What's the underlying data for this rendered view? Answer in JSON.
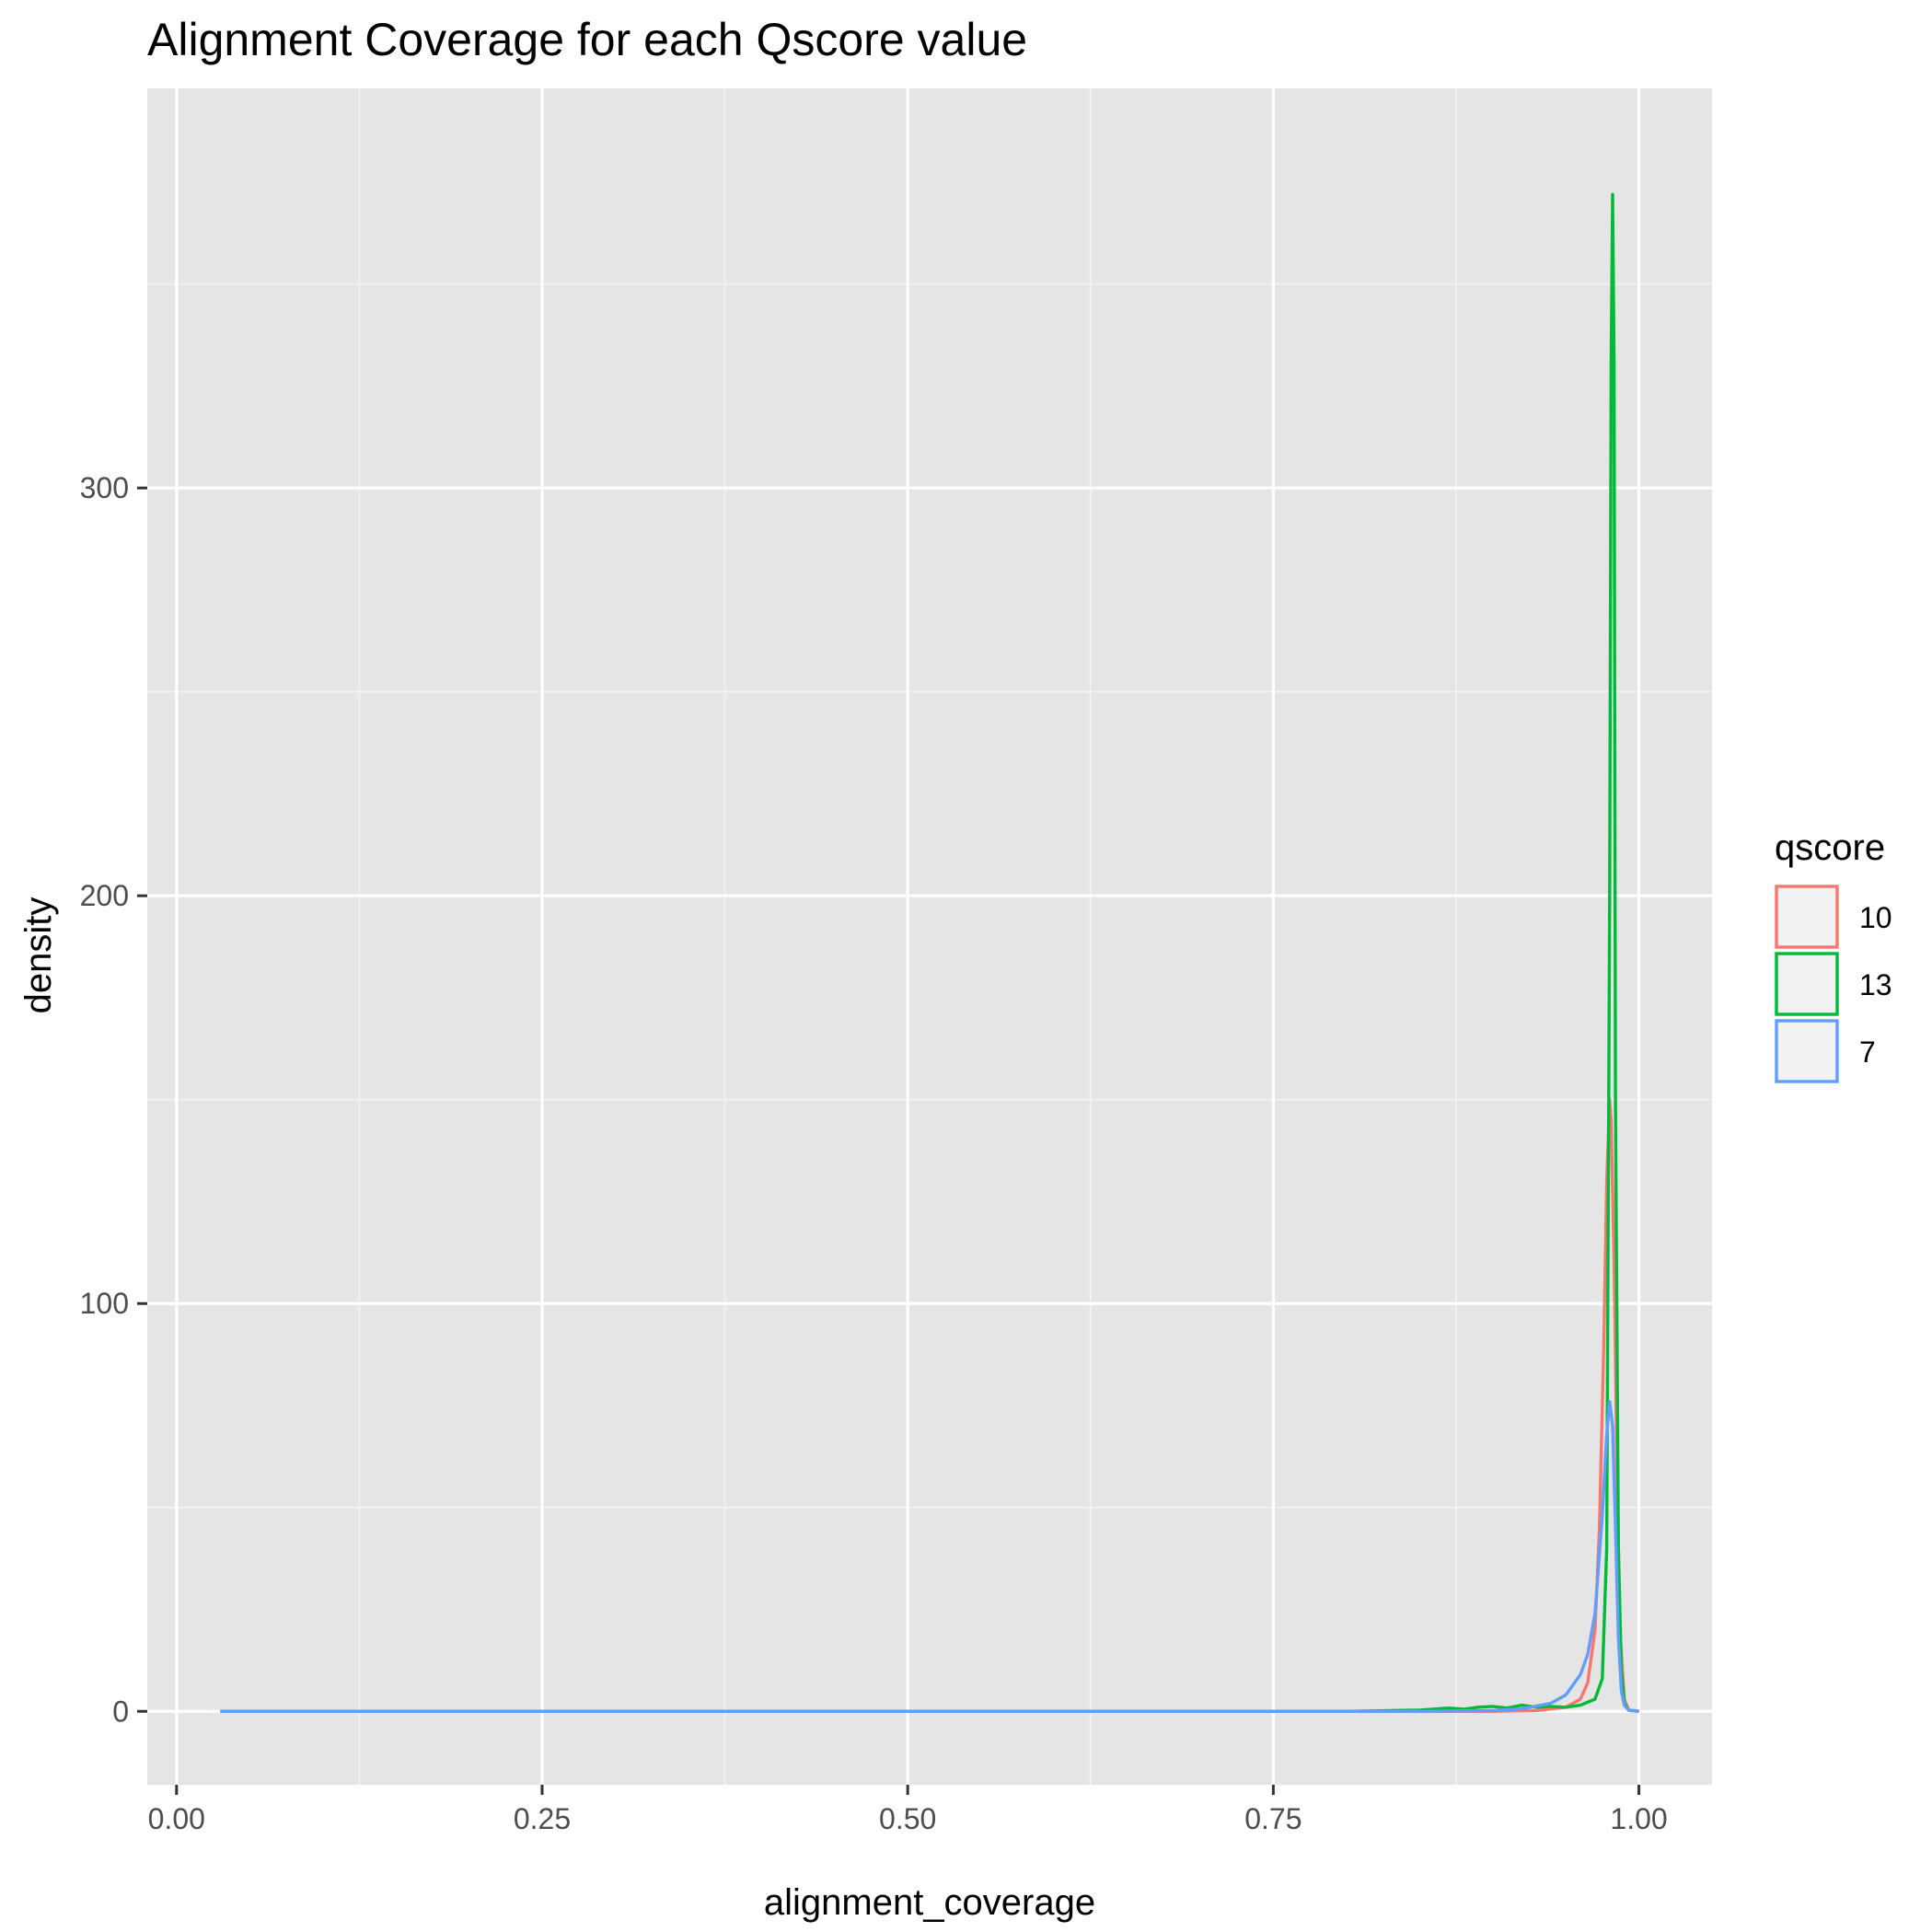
{
  "chart_data": {
    "type": "line",
    "title": "Alignment Coverage for each Qscore value",
    "xlabel": "alignment_coverage",
    "ylabel": "density",
    "xlim": [
      -0.02,
      1.05
    ],
    "ylim": [
      -18,
      398
    ],
    "x_ticks": [
      0.0,
      0.25,
      0.5,
      0.75,
      1.0
    ],
    "x_tick_labels": [
      "0.00",
      "0.25",
      "0.50",
      "0.75",
      "1.00"
    ],
    "y_ticks": [
      0,
      100,
      200,
      300
    ],
    "y_tick_labels": [
      "0",
      "100",
      "200",
      "300"
    ],
    "grid": true,
    "background": "#e5e5e5",
    "legend": {
      "title": "qscore",
      "position": "right",
      "entries": [
        "10",
        "13",
        "7"
      ]
    },
    "series": [
      {
        "name": "10",
        "color": "#f8766d",
        "x": [
          0.03,
          0.2,
          0.4,
          0.6,
          0.8,
          0.85,
          0.9,
          0.93,
          0.95,
          0.96,
          0.965,
          0.97,
          0.973,
          0.976,
          0.978,
          0.98,
          0.981,
          0.983,
          0.985,
          0.987,
          0.99,
          0.993,
          1.0
        ],
        "y": [
          0,
          0,
          0,
          0,
          0,
          0,
          0,
          0.2,
          1,
          3,
          7,
          20,
          45,
          90,
          130,
          150,
          145,
          110,
          60,
          20,
          3,
          0.3,
          0
        ]
      },
      {
        "name": "13",
        "color": "#00ba38",
        "x": [
          0.03,
          0.2,
          0.4,
          0.6,
          0.8,
          0.85,
          0.87,
          0.88,
          0.89,
          0.9,
          0.91,
          0.92,
          0.93,
          0.94,
          0.95,
          0.96,
          0.97,
          0.975,
          0.978,
          0.98,
          0.981,
          0.982,
          0.983,
          0.984,
          0.986,
          0.988,
          0.99,
          0.993,
          1.0
        ],
        "y": [
          0,
          0,
          0,
          0,
          0,
          0.3,
          0.8,
          0.5,
          1,
          1.2,
          0.8,
          1.5,
          1,
          1.2,
          1,
          1.5,
          3,
          8,
          40,
          200,
          330,
          372,
          330,
          150,
          40,
          10,
          2,
          0.3,
          0
        ]
      },
      {
        "name": "7",
        "color": "#619cff",
        "x": [
          0.03,
          0.2,
          0.4,
          0.6,
          0.8,
          0.85,
          0.9,
          0.92,
          0.94,
          0.95,
          0.96,
          0.965,
          0.97,
          0.975,
          0.978,
          0.98,
          0.982,
          0.984,
          0.986,
          0.988,
          0.99,
          0.993,
          1.0
        ],
        "y": [
          0,
          0,
          0,
          0,
          0,
          0,
          0.2,
          0.6,
          2,
          4,
          9,
          14,
          24,
          48,
          68,
          76,
          70,
          45,
          18,
          5,
          1.5,
          0.3,
          0
        ]
      }
    ]
  }
}
